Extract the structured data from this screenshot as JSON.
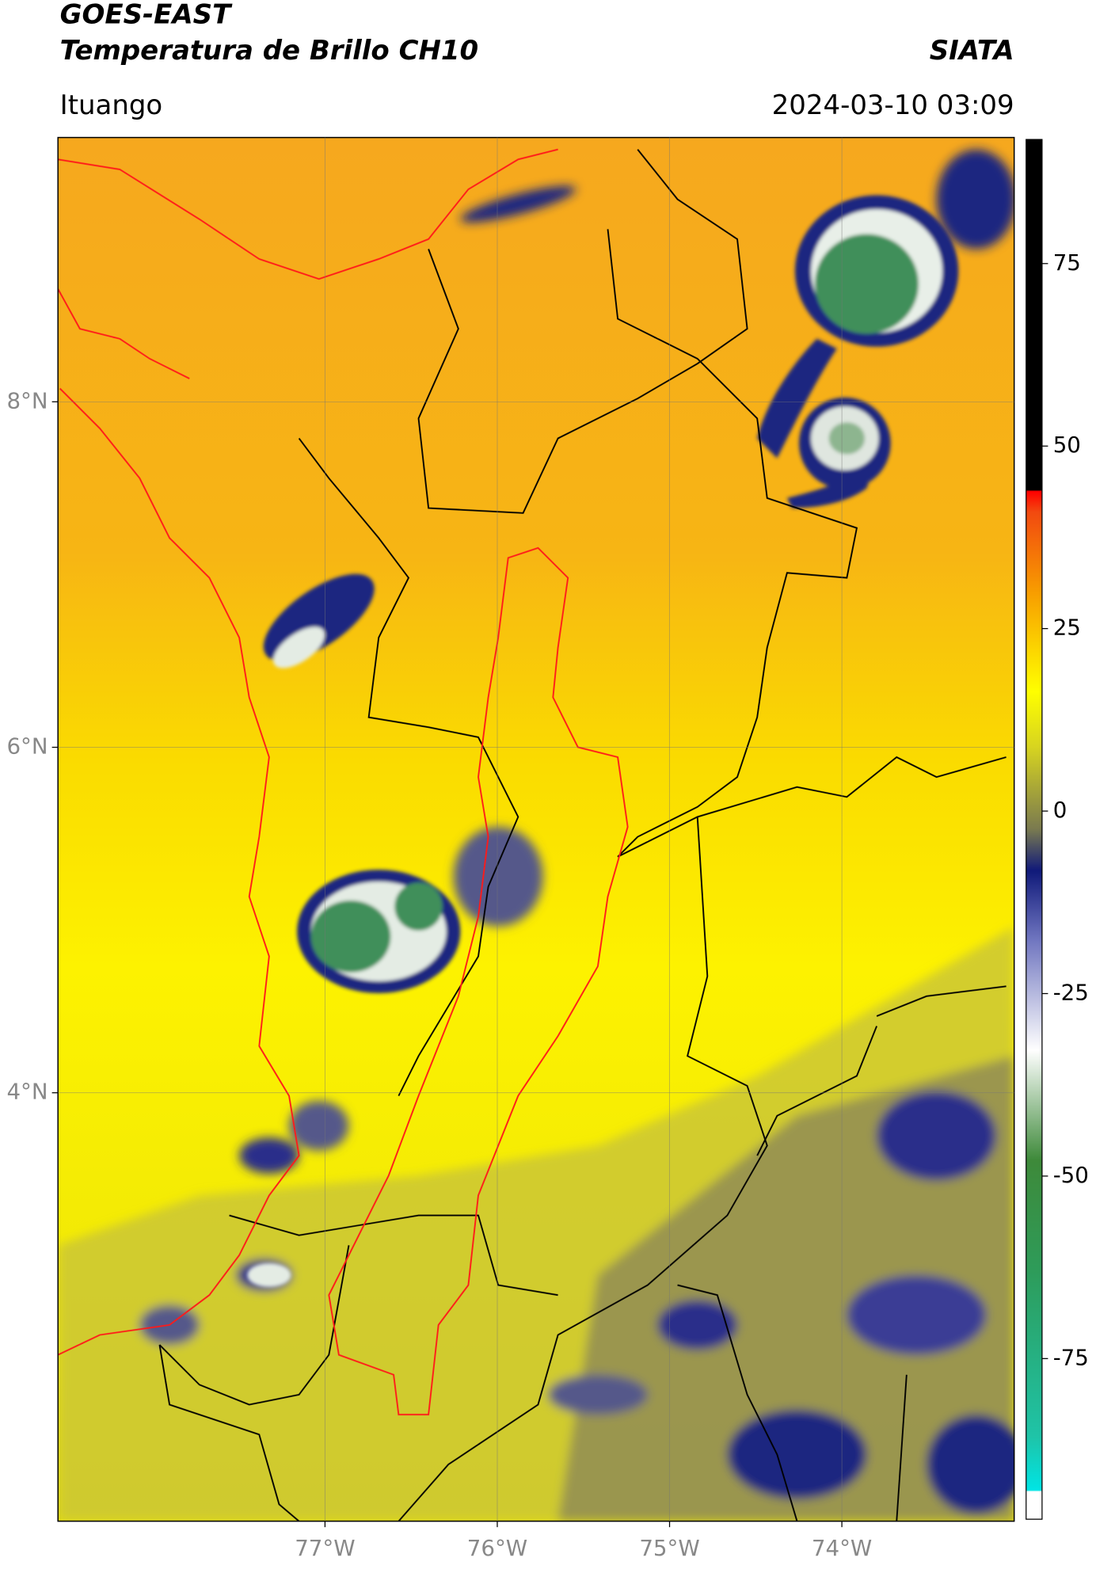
{
  "header": {
    "satellite": "GOES-EAST",
    "product": "Temperatura de Brillo CH10",
    "source": "SIATA",
    "region": "Ituango",
    "datetime": "2024-03-10 03:09"
  },
  "map": {
    "lon_range": [
      -78.55,
      -73.0
    ],
    "lat_range": [
      1.52,
      9.53
    ],
    "lon_ticks": [
      {
        "value": -77,
        "label": "77°W"
      },
      {
        "value": -76,
        "label": "76°W"
      },
      {
        "value": -75,
        "label": "75°W"
      },
      {
        "value": -74,
        "label": "74°W"
      }
    ],
    "lat_ticks": [
      {
        "value": 8,
        "label": "8°N"
      },
      {
        "value": 6,
        "label": "6°N"
      },
      {
        "value": 4,
        "label": "4°N"
      }
    ],
    "grid": true
  },
  "colorbar": {
    "range": [
      -97,
      92
    ],
    "ticks": [
      75,
      50,
      25,
      0,
      -25,
      -50,
      -75
    ]
  }
}
